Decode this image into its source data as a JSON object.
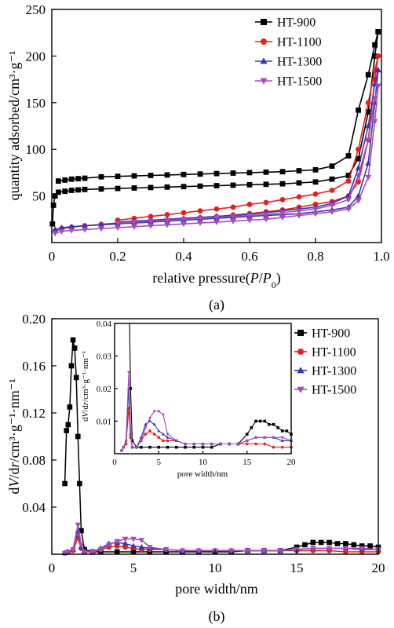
{
  "colors": {
    "HT-900": "#000000",
    "HT-1100": "#e8201c",
    "HT-1300": "#3636b4",
    "HT-1500": "#a64cb8"
  },
  "chart_data": [
    {
      "id": "a",
      "type": "line",
      "caption": "(a)",
      "ylabel": "quantity adsorbed/cm³·g⁻¹",
      "xlabel": "relative pressure(P/P₀)",
      "xlim": [
        0,
        1.0
      ],
      "ylim": [
        0,
        250
      ],
      "xticks": [
        "0",
        "0.2",
        "0.4",
        "0.6",
        "0.8",
        "1.0"
      ],
      "xtick_values": [
        0,
        0.2,
        0.4,
        0.6,
        0.8,
        1.0
      ],
      "yticks": [
        "50",
        "100",
        "150",
        "200",
        "250"
      ],
      "ytick_values": [
        50,
        100,
        150,
        200,
        250
      ],
      "legend_position": "top-right",
      "series": [
        {
          "name": "HT-900",
          "marker": "square",
          "adsorption": {
            "x": [
              0.002,
              0.005,
              0.01,
              0.02,
              0.04,
              0.06,
              0.08,
              0.1,
              0.15,
              0.2,
              0.25,
              0.3,
              0.35,
              0.4,
              0.45,
              0.5,
              0.55,
              0.6,
              0.65,
              0.7,
              0.75,
              0.8,
              0.85,
              0.9,
              0.93,
              0.96,
              0.98,
              0.99
            ],
            "y": [
              20,
              40,
              50,
              54,
              55,
              56,
              56.5,
              57,
              57.5,
              58,
              58.5,
              59,
              59.5,
              60,
              60.5,
              61,
              61.5,
              62,
              62.5,
              63,
              64,
              65,
              68,
              72,
              90,
              140,
              200,
              226
            ]
          },
          "desorption": {
            "x": [
              0.99,
              0.98,
              0.96,
              0.93,
              0.9,
              0.85,
              0.8,
              0.75,
              0.7,
              0.65,
              0.6,
              0.55,
              0.5,
              0.45,
              0.4,
              0.35,
              0.3,
              0.25,
              0.2,
              0.15,
              0.1,
              0.08,
              0.06,
              0.04,
              0.02
            ],
            "y": [
              226,
              212,
              180,
              142,
              93,
              82,
              78,
              77,
              76,
              75.5,
              75,
              74.5,
              74,
              73.5,
              73,
              72.5,
              72,
              71.5,
              71,
              70.5,
              69,
              68.5,
              68,
              67,
              66
            ]
          }
        },
        {
          "name": "HT-1100",
          "marker": "circle",
          "adsorption": {
            "x": [
              0.01,
              0.03,
              0.06,
              0.1,
              0.15,
              0.2,
              0.25,
              0.3,
              0.35,
              0.4,
              0.45,
              0.5,
              0.55,
              0.6,
              0.65,
              0.7,
              0.75,
              0.8,
              0.85,
              0.9,
              0.93,
              0.96,
              0.98,
              0.99
            ],
            "y": [
              12,
              15,
              16.5,
              18,
              19.5,
              21,
              22,
              23,
              24,
              25,
              26.5,
              28,
              29.5,
              31,
              33,
              35,
              38,
              41,
              44,
              50,
              65,
              110,
              175,
              200
            ]
          },
          "desorption": {
            "x": [
              0.99,
              0.98,
              0.96,
              0.93,
              0.9,
              0.85,
              0.8,
              0.75,
              0.7,
              0.65,
              0.6,
              0.55,
              0.5,
              0.45,
              0.4,
              0.35,
              0.3,
              0.25,
              0.2
            ],
            "y": [
              200,
              185,
              150,
              100,
              66,
              56,
              52,
              49,
              46,
              43,
              41,
              38,
              36,
              34,
              32,
              30,
              28,
              26,
              24
            ]
          }
        },
        {
          "name": "HT-1300",
          "marker": "triangle-up",
          "adsorption": {
            "x": [
              0.01,
              0.03,
              0.06,
              0.1,
              0.15,
              0.2,
              0.25,
              0.3,
              0.35,
              0.4,
              0.45,
              0.5,
              0.55,
              0.6,
              0.65,
              0.7,
              0.75,
              0.8,
              0.85,
              0.9,
              0.93,
              0.96,
              0.98,
              0.99
            ],
            "y": [
              14,
              16,
              17,
              18,
              19,
              20,
              21,
              22,
              23,
              24,
              25,
              26,
              27,
              28,
              29,
              30,
              31,
              33,
              35,
              38,
              50,
              85,
              150,
              185
            ]
          },
          "desorption": {
            "x": [
              0.99,
              0.98,
              0.96,
              0.93,
              0.9,
              0.85,
              0.8,
              0.75,
              0.7,
              0.65,
              0.6,
              0.55,
              0.5,
              0.45,
              0.4,
              0.35,
              0.3,
              0.25,
              0.2
            ],
            "y": [
              185,
              170,
              125,
              80,
              50,
              42,
              38,
              36,
              34,
              32,
              30.5,
              29,
              28,
              27,
              26,
              25,
              24,
              23,
              22
            ]
          }
        },
        {
          "name": "HT-1500",
          "marker": "triangle-down",
          "adsorption": {
            "x": [
              0.01,
              0.03,
              0.06,
              0.1,
              0.15,
              0.2,
              0.25,
              0.3,
              0.35,
              0.4,
              0.45,
              0.5,
              0.55,
              0.6,
              0.65,
              0.7,
              0.75,
              0.8,
              0.85,
              0.9,
              0.93,
              0.96,
              0.98,
              0.99
            ],
            "y": [
              10,
              12,
              13,
              14,
              15,
              16,
              17,
              18,
              19,
              20,
              21,
              22,
              23,
              24,
              25,
              27,
              29,
              31,
              33,
              36,
              45,
              70,
              130,
              168
            ]
          },
          "desorption": {
            "x": [
              0.99,
              0.98,
              0.96,
              0.93,
              0.9,
              0.85,
              0.8,
              0.75,
              0.7,
              0.65,
              0.6,
              0.55,
              0.5,
              0.45,
              0.4,
              0.35,
              0.3,
              0.25,
              0.2
            ],
            "y": [
              168,
              155,
              110,
              72,
              46,
              40,
              36,
              34,
              32,
              30,
              29,
              28,
              27,
              26,
              25,
              24,
              23,
              22,
              21
            ]
          }
        }
      ]
    },
    {
      "id": "b",
      "type": "line",
      "caption": "(b)",
      "ylabel": "dV/dr/cm³·g⁻¹·nm⁻¹",
      "xlabel": "pore width/nm",
      "xlim": [
        0,
        20
      ],
      "ylim": [
        0,
        0.2
      ],
      "xticks": [
        "0",
        "5",
        "10",
        "15",
        "20"
      ],
      "xtick_values": [
        0,
        5,
        10,
        15,
        20
      ],
      "yticks": [
        "0.04",
        "0.08",
        "0.12",
        "0.16",
        "0.20"
      ],
      "ytick_values": [
        0.04,
        0.08,
        0.12,
        0.16,
        0.2
      ],
      "legend_position": "right",
      "series": [
        {
          "name": "HT-900",
          "marker": "square",
          "x": [
            0.8,
            0.9,
            1.0,
            1.1,
            1.2,
            1.3,
            1.4,
            1.5,
            1.6,
            1.7,
            1.8,
            2.0,
            2.5,
            3,
            4,
            5,
            6,
            7,
            8,
            9,
            10,
            11,
            12,
            13,
            14,
            15,
            15.5,
            16,
            16.5,
            17,
            17.5,
            18,
            18.5,
            19,
            19.5,
            20
          ],
          "y": [
            0.06,
            0.105,
            0.11,
            0.125,
            0.16,
            0.182,
            0.175,
            0.15,
            0.1,
            0.06,
            0.02,
            0.004,
            0.002,
            0.002,
            0.002,
            0.002,
            0.002,
            0.002,
            0.002,
            0.002,
            0.002,
            0.002,
            0.003,
            0.003,
            0.003,
            0.006,
            0.008,
            0.01,
            0.01,
            0.01,
            0.009,
            0.009,
            0.008,
            0.007,
            0.007,
            0.006
          ]
        },
        {
          "name": "HT-1100",
          "marker": "circle",
          "x": [
            0.8,
            1.0,
            1.3,
            1.6,
            1.8,
            2.0,
            2.5,
            3,
            3.5,
            4,
            4.5,
            5,
            5.5,
            6,
            7,
            8,
            9,
            10,
            11,
            12,
            13,
            14,
            15,
            16,
            17,
            18,
            19,
            20
          ],
          "y": [
            0.001,
            0.002,
            0.003,
            0.014,
            0.005,
            0.002,
            0.002,
            0.004,
            0.006,
            0.007,
            0.006,
            0.005,
            0.004,
            0.004,
            0.004,
            0.003,
            0.003,
            0.003,
            0.003,
            0.003,
            0.003,
            0.003,
            0.003,
            0.003,
            0.003,
            0.002,
            0.002,
            0.002
          ]
        },
        {
          "name": "HT-1300",
          "marker": "triangle-up",
          "x": [
            0.8,
            1.0,
            1.3,
            1.6,
            1.8,
            2.0,
            2.5,
            3,
            3.5,
            4,
            4.5,
            5,
            5.5,
            6,
            7,
            8,
            9,
            10,
            11,
            12,
            13,
            14,
            15,
            16,
            17,
            18,
            19,
            20
          ],
          "y": [
            0.001,
            0.002,
            0.004,
            0.02,
            0.006,
            0.002,
            0.002,
            0.005,
            0.009,
            0.01,
            0.009,
            0.007,
            0.006,
            0.005,
            0.004,
            0.003,
            0.003,
            0.003,
            0.003,
            0.003,
            0.003,
            0.003,
            0.004,
            0.005,
            0.005,
            0.005,
            0.004,
            0.004
          ]
        },
        {
          "name": "HT-1500",
          "marker": "triangle-down",
          "x": [
            0.8,
            1.0,
            1.3,
            1.6,
            1.8,
            2.0,
            2.5,
            3,
            3.5,
            4,
            4.5,
            5,
            5.5,
            6,
            7,
            8,
            9,
            10,
            11,
            12,
            13,
            14,
            15,
            16,
            17,
            18,
            19,
            20
          ],
          "y": [
            0.001,
            0.002,
            0.004,
            0.025,
            0.008,
            0.002,
            0.002,
            0.004,
            0.008,
            0.011,
            0.013,
            0.013,
            0.012,
            0.006,
            0.004,
            0.003,
            0.003,
            0.003,
            0.003,
            0.003,
            0.003,
            0.003,
            0.004,
            0.005,
            0.005,
            0.005,
            0.005,
            0.004
          ]
        }
      ],
      "inset": {
        "xlabel": "pore width/nm",
        "ylabel": "dV/dr/cm³·g⁻¹·nm⁻¹",
        "xlim": [
          0,
          20
        ],
        "ylim": [
          0,
          0.04
        ],
        "xticks": [
          "0",
          "5",
          "10",
          "15",
          "20"
        ],
        "xtick_values": [
          0,
          5,
          10,
          15,
          20
        ],
        "yticks": [
          "0.01",
          "0.02",
          "0.03",
          "0.04"
        ],
        "ytick_values": [
          0.01,
          0.02,
          0.03,
          0.04
        ]
      }
    }
  ]
}
